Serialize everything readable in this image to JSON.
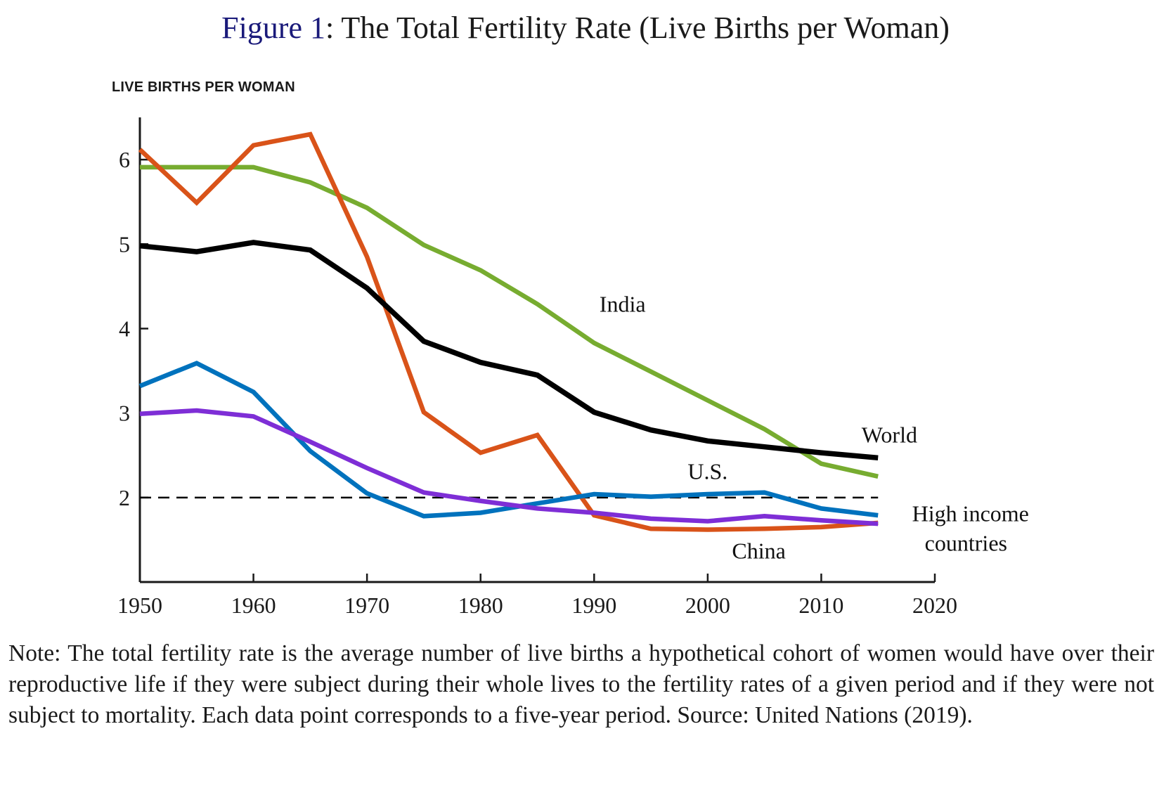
{
  "title": {
    "figure_number": "Figure 1",
    "separator": ": ",
    "text": "The Total Fertility Rate (Live Births per Woman)"
  },
  "note": "Note: The total fertility rate is the average number of live births a hypothetical cohort of women would have over their reproductive life if they were subject during their whole lives to the fertility rates of a given period and if they were not subject to mortality. Each data point corresponds to a five-year period. Source: United Nations (2019).",
  "chart_data": {
    "type": "line",
    "title": "Figure 1: The Total Fertility Rate (Live Births per Woman)",
    "xlabel": "",
    "ylabel": "LIVE BIRTHS PER WOMAN",
    "xlim": [
      1950,
      2020
    ],
    "ylim": [
      1,
      6.5
    ],
    "grid": false,
    "legend": "inline labels",
    "xticks": [
      1950,
      1960,
      1970,
      1980,
      1990,
      2000,
      2010,
      2020
    ],
    "xtick_labels": [
      "1950",
      "1960",
      "1970",
      "1980",
      "1990",
      "2000",
      "2010",
      "2020"
    ],
    "yticks": [
      2,
      3,
      4,
      5,
      6
    ],
    "ytick_labels": [
      "2",
      "3",
      "4",
      "5",
      "6"
    ],
    "x": [
      1950,
      1955,
      1960,
      1965,
      1970,
      1975,
      1980,
      1985,
      1990,
      1995,
      2000,
      2005,
      2010,
      2015
    ],
    "reference_line": {
      "y": 2,
      "style": "dashed",
      "color": "#000000"
    },
    "series": [
      {
        "name": "India",
        "label": "India",
        "color": "#77AC30",
        "values": [
          5.91,
          5.91,
          5.91,
          5.73,
          5.43,
          4.99,
          4.69,
          4.29,
          3.83,
          3.49,
          3.15,
          2.81,
          2.4,
          2.25
        ],
        "label_anchor": {
          "x": 1992.5,
          "y": 4.2
        }
      },
      {
        "name": "China",
        "label": "China",
        "color": "#D95319",
        "values": [
          6.12,
          5.49,
          6.17,
          6.3,
          4.85,
          3.01,
          2.53,
          2.74,
          1.79,
          1.63,
          1.62,
          1.63,
          1.65,
          1.7
        ],
        "label_anchor": {
          "x": 2004.5,
          "y": 1.28
        }
      },
      {
        "name": "World",
        "label": "World",
        "color": "#000000",
        "values": [
          4.98,
          4.91,
          5.02,
          4.93,
          4.48,
          3.85,
          3.6,
          3.45,
          3.01,
          2.8,
          2.67,
          2.6,
          2.53,
          2.47
        ],
        "label_anchor": {
          "x": 2016,
          "y": 2.65
        }
      },
      {
        "name": "U.S.",
        "label": "U.S.",
        "color": "#0072BD",
        "values": [
          3.32,
          3.59,
          3.25,
          2.55,
          2.05,
          1.78,
          1.82,
          1.93,
          2.04,
          2.01,
          2.04,
          2.06,
          1.87,
          1.79
        ],
        "label_anchor": {
          "x": 2000,
          "y": 2.22
        }
      },
      {
        "name": "High income countries",
        "label": "High income\ncountries",
        "color": "#7E2ED6",
        "values": [
          2.99,
          3.03,
          2.96,
          2.66,
          2.35,
          2.06,
          1.96,
          1.87,
          1.82,
          1.75,
          1.72,
          1.78,
          1.73,
          1.69
        ],
        "label_anchor": {
          "x": 2018,
          "y": 1.72
        }
      }
    ]
  }
}
